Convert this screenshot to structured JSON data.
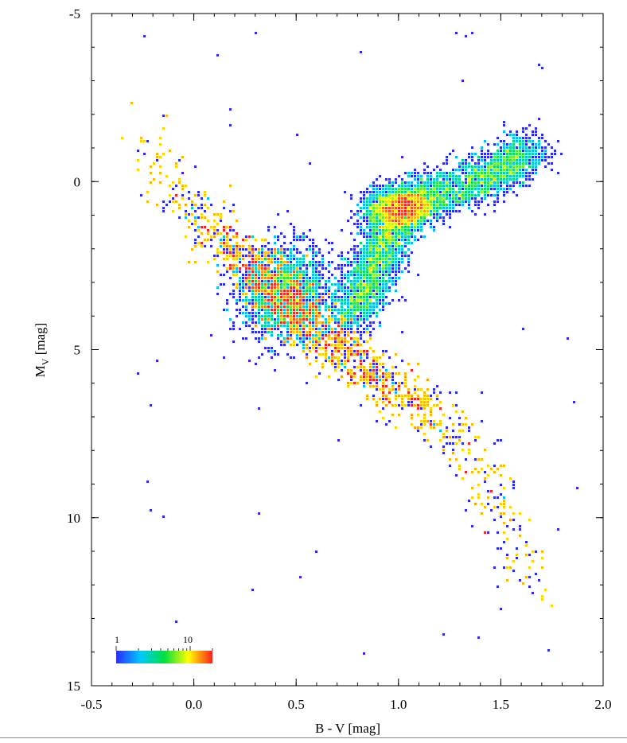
{
  "chart_data": {
    "type": "heatmap",
    "title": "",
    "xlabel": "B - V [mag]",
    "ylabel_main": "M",
    "ylabel_sub": "V",
    "ylabel_tail": " [mag]",
    "xlim": [
      -0.5,
      2.0
    ],
    "ylim": [
      15,
      -5
    ],
    "y_inverted": true,
    "x_ticks": [
      -0.5,
      0.0,
      0.5,
      1.0,
      1.5,
      2.0
    ],
    "x_tick_labels": [
      "-0.5",
      "0.0",
      "0.5",
      "1.0",
      "1.5",
      "2.0"
    ],
    "y_ticks": [
      -5,
      0,
      5,
      10,
      15
    ],
    "y_tick_labels": [
      "-5",
      "0",
      "5",
      "10",
      "15"
    ],
    "colorbar": {
      "scale": "log",
      "range": [
        1,
        20
      ],
      "label_min": "1",
      "label_mid": "10",
      "colors": [
        "#2a2aff",
        "#00c8ff",
        "#00e040",
        "#ffff00",
        "#ff2020"
      ],
      "position": "bottom-left"
    },
    "grid": false,
    "density_structures": [
      {
        "name": "main sequence",
        "ridge": [
          [
            -0.22,
            -1.5
          ],
          [
            -0.1,
            0.3
          ],
          [
            0.1,
            1.4
          ],
          [
            0.3,
            2.6
          ],
          [
            0.45,
            3.6
          ],
          [
            0.6,
            4.5
          ],
          [
            0.8,
            5.4
          ],
          [
            1.0,
            6.3
          ],
          [
            1.2,
            7.2
          ],
          [
            1.35,
            8.0
          ],
          [
            1.45,
            9.0
          ],
          [
            1.5,
            10.0
          ],
          [
            1.58,
            11.2
          ],
          [
            1.65,
            12.3
          ]
        ]
      },
      {
        "name": "red giant branch",
        "ridge": [
          [
            0.78,
            4.0
          ],
          [
            0.85,
            3.0
          ],
          [
            0.92,
            2.0
          ],
          [
            1.0,
            1.0
          ],
          [
            1.1,
            0.5
          ],
          [
            1.3,
            0.2
          ],
          [
            1.5,
            -0.3
          ],
          [
            1.65,
            -1.0
          ]
        ]
      },
      {
        "name": "red clump",
        "center": [
          1.0,
          0.8
        ]
      }
    ]
  }
}
